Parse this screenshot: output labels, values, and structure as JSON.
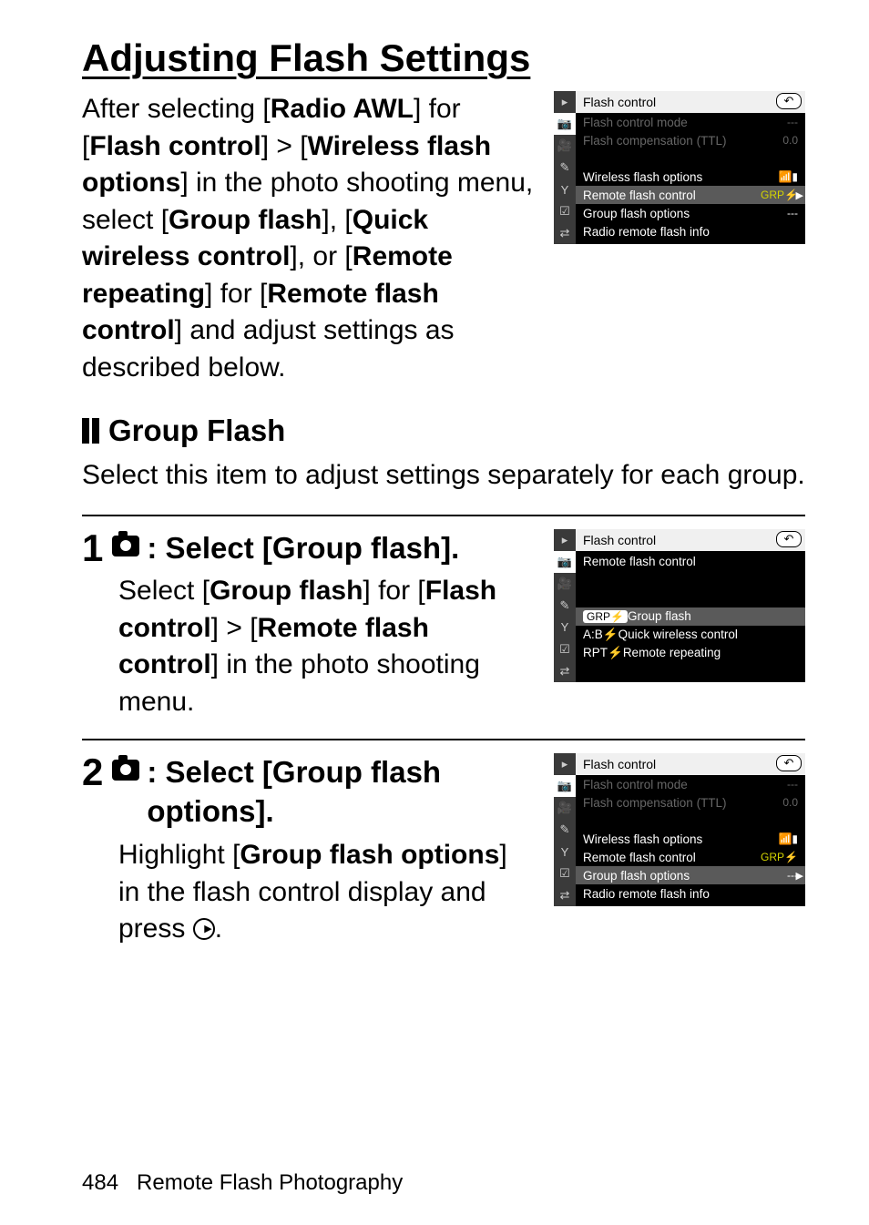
{
  "heading": "Adjusting Flash Settings",
  "intro_text_parts": {
    "p1": "After selecting [",
    "b1": "Radio AWL",
    "p2": "] for [",
    "b2": "Flash control",
    "p3": "] > [",
    "b3": "Wireless flash options",
    "p4": "] in the photo shooting menu, select [",
    "b4": "Group flash",
    "p5": "], [",
    "b5": "Quick wireless control",
    "p6": "], or [",
    "b6": "Remote repeating",
    "p7": "] for [",
    "b7": "Remote flash control",
    "p8": "] and adjust settings as described below."
  },
  "screenshot1": {
    "title": "Flash control",
    "back_glyph": "↶",
    "rows": [
      {
        "label": "Flash control mode",
        "value": "---",
        "dim": true
      },
      {
        "label": "Flash compensation (TTL)",
        "value": "0.0",
        "dim": true
      },
      {
        "label": "",
        "value": ""
      },
      {
        "label": "Wireless flash options",
        "value": "📶▮"
      },
      {
        "label": "Remote flash control",
        "value": "GRP⚡",
        "arrow": "▶",
        "highlighted": true,
        "yellow_value": true
      },
      {
        "label": "Group flash options",
        "value": "---"
      },
      {
        "label": "Radio remote flash info",
        "value": ""
      }
    ],
    "sidebar_icons": [
      "▸",
      "📷",
      "🎥",
      "✎",
      "Y",
      "☑",
      "⇄"
    ],
    "active_sidebar": 1
  },
  "sub_heading": "Group Flash",
  "sub_text": "Select this item to adjust settings separately for each group.",
  "step1": {
    "title_after_icon": ": Select [Group flash].",
    "body_parts": {
      "p1": "Select [",
      "b1": "Group flash",
      "p2": "] for [",
      "b2": "Flash control",
      "p3": "] > [",
      "b3": "Remote flash control",
      "p4": "] in the photo shooting menu."
    },
    "screenshot": {
      "title": "Flash control",
      "subtitle": "Remote flash control",
      "back_glyph": "↶",
      "rows": [
        {
          "prefix": "GRP⚡",
          "label": "Group flash",
          "highlighted": true
        },
        {
          "prefix": "A:B⚡",
          "label": "Quick wireless control"
        },
        {
          "prefix": "RPT⚡",
          "label": "Remote repeating"
        }
      ],
      "sidebar_icons": [
        "▸",
        "📷",
        "🎥",
        "✎",
        "Y",
        "☑",
        "⇄"
      ],
      "active_sidebar": 1
    }
  },
  "step2": {
    "title_after_icon": ": Select [Group flash options].",
    "body_parts": {
      "p1": "Highlight [",
      "b1": "Group flash options",
      "p2": "] in the flash control display and press "
    },
    "body_after_icon": ".",
    "screenshot": {
      "title": "Flash control",
      "back_glyph": "↶",
      "rows": [
        {
          "label": "Flash control mode",
          "value": "---",
          "dim": true
        },
        {
          "label": "Flash compensation (TTL)",
          "value": "0.0",
          "dim": true
        },
        {
          "label": "",
          "value": ""
        },
        {
          "label": "Wireless flash options",
          "value": "📶▮"
        },
        {
          "label": "Remote flash control",
          "value": "GRP⚡",
          "yellow_value": true
        },
        {
          "label": "Group flash options",
          "value": "---",
          "arrow": "▶",
          "highlighted": true
        },
        {
          "label": "Radio remote flash info",
          "value": ""
        }
      ],
      "sidebar_icons": [
        "▸",
        "📷",
        "🎥",
        "✎",
        "Y",
        "☑",
        "⇄"
      ],
      "active_sidebar": 1
    }
  },
  "footer": {
    "page": "484",
    "chapter": "Remote Flash Photography"
  }
}
